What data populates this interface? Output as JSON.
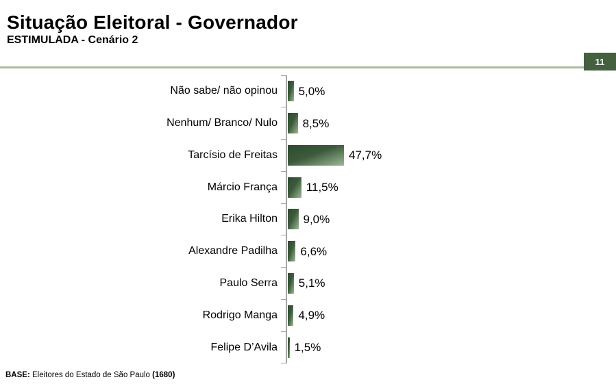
{
  "header": {
    "title": "Situação Eleitoral - Governador",
    "subtitle": "ESTIMULADA - Cenário 2",
    "page_number": "11"
  },
  "chart_data": {
    "type": "bar",
    "orientation": "horizontal",
    "title": "Situação Eleitoral - Governador",
    "subtitle": "ESTIMULADA - Cenário 2",
    "categories": [
      "Não sabe/ não opinou",
      "Nenhum/ Branco/ Nulo",
      "Tarcísio de Freitas",
      "Márcio França",
      "Erika Hilton",
      "Alexandre Padilha",
      "Paulo Serra",
      "Rodrigo Manga",
      "Felipe D’Avila"
    ],
    "values": [
      5.0,
      8.5,
      47.7,
      11.5,
      9.0,
      6.6,
      5.1,
      4.9,
      1.5
    ],
    "value_labels": [
      "5,0%",
      "8,5%",
      "47,7%",
      "11,5%",
      "9,0%",
      "6,6%",
      "5,1%",
      "4,9%",
      "1,5%"
    ],
    "unit": "%",
    "xlim": [
      0,
      100
    ],
    "grid": false,
    "legend": false,
    "axis_side": "left",
    "bar_gradient": [
      "#2c4a2e",
      "#3c5a3b",
      "#9cb898"
    ]
  },
  "footer": {
    "base_label": "BASE:",
    "base_text": " Eleitores do Estado de São Paulo ",
    "base_count": "(1680)"
  },
  "colors": {
    "badge_green": "#44603f",
    "separator_green": "#a9bb9e",
    "axis_gray": "#a6a6a6",
    "bar_dark": "#2c4a2e",
    "bar_mid": "#3c5a3b",
    "bar_light": "#9cb898",
    "text": "#000000"
  }
}
